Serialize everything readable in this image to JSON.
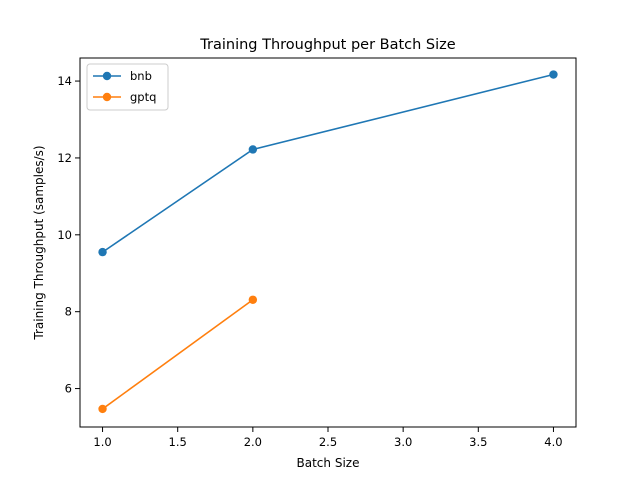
{
  "chart_data": {
    "type": "line",
    "title": "Training Throughput per Batch Size",
    "xlabel": "Batch Size",
    "ylabel": "Training Throughput (samples/s)",
    "xlim": [
      0.85,
      4.15
    ],
    "ylim": [
      5.0,
      14.6
    ],
    "xticks": [
      1.0,
      1.5,
      2.0,
      2.5,
      3.0,
      3.5,
      4.0
    ],
    "xtick_labels": [
      "1.0",
      "1.5",
      "2.0",
      "2.5",
      "3.0",
      "3.5",
      "4.0"
    ],
    "yticks": [
      6,
      8,
      10,
      12,
      14
    ],
    "ytick_labels": [
      "6",
      "8",
      "10",
      "12",
      "14"
    ],
    "grid": false,
    "legend_position": "top-left",
    "series": [
      {
        "name": "bnb",
        "color": "#1f77b4",
        "x": [
          1.0,
          2.0,
          4.0
        ],
        "y": [
          9.55,
          12.22,
          14.17
        ]
      },
      {
        "name": "gptq",
        "color": "#ff7f0e",
        "x": [
          1.0,
          2.0
        ],
        "y": [
          5.47,
          8.31
        ]
      }
    ]
  }
}
